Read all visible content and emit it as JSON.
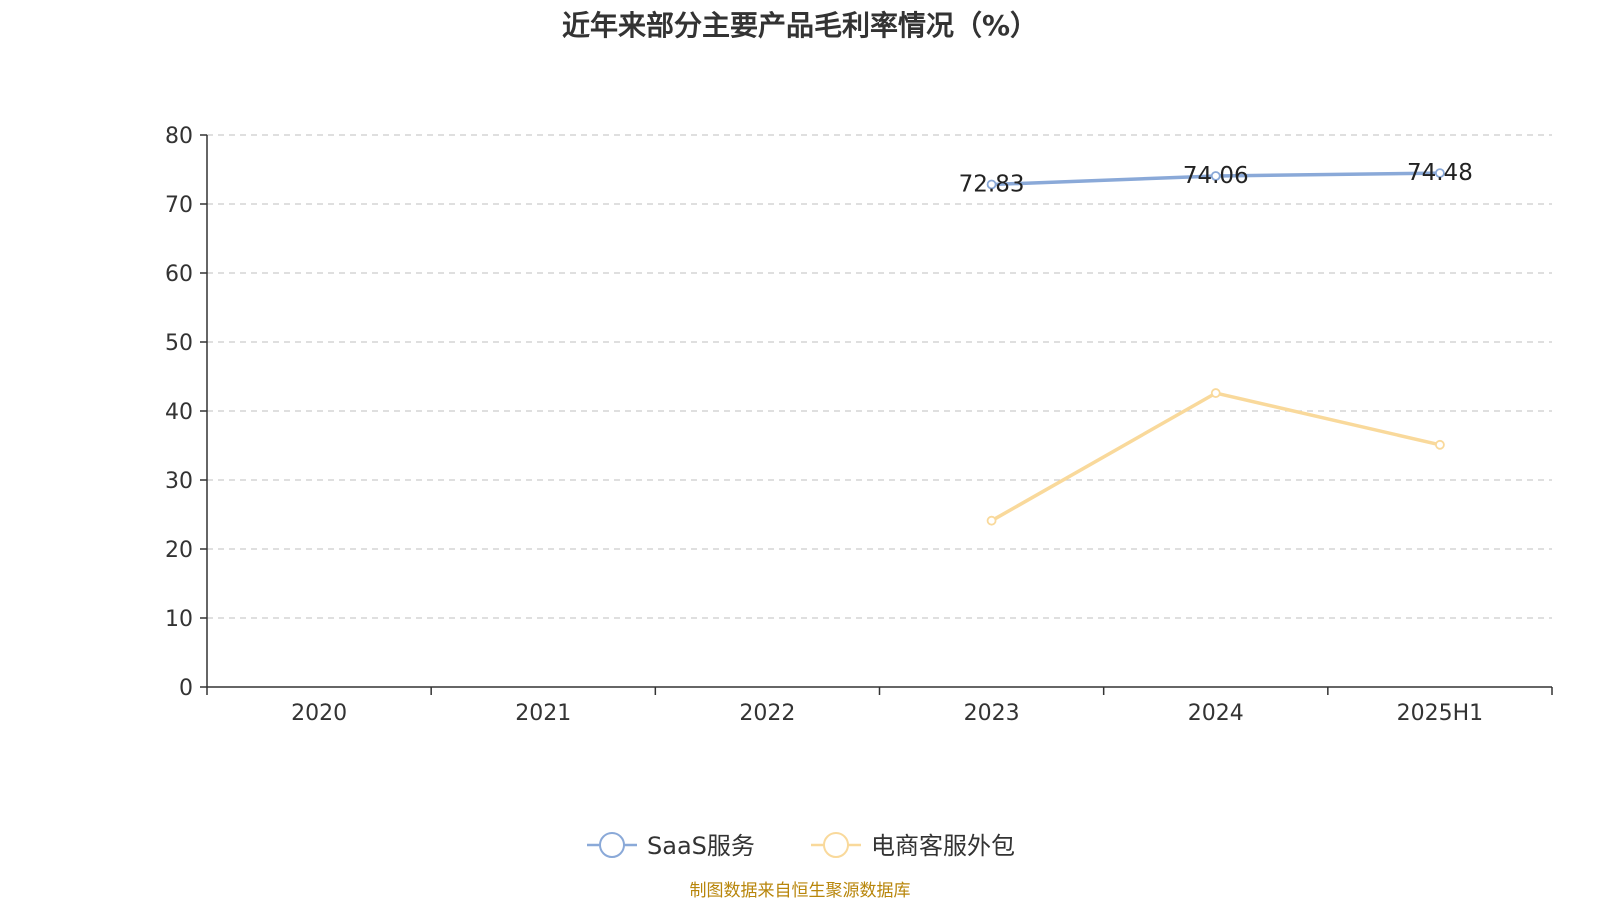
{
  "source_note": "制图数据来自恒生聚源数据库",
  "chart_data": {
    "type": "line",
    "title": "近年来部分主要产品毛利率情况（%）",
    "xlabel": "",
    "ylabel": "",
    "categories": [
      "2020",
      "2021",
      "2022",
      "2023",
      "2024",
      "2025H1"
    ],
    "ylim": [
      0,
      80
    ],
    "yticks": [
      0,
      10,
      20,
      30,
      40,
      50,
      60,
      70,
      80
    ],
    "grid": true,
    "legend_position": "bottom-center",
    "series": [
      {
        "name": "SaaS服务",
        "color": "#8aa9d8",
        "values": [
          null,
          null,
          null,
          72.83,
          74.06,
          74.48
        ],
        "show_labels": true
      },
      {
        "name": "电商客服外包",
        "color": "#f9d99b",
        "values": [
          null,
          null,
          null,
          24.1,
          42.6,
          35.1
        ],
        "show_labels": false
      }
    ]
  }
}
